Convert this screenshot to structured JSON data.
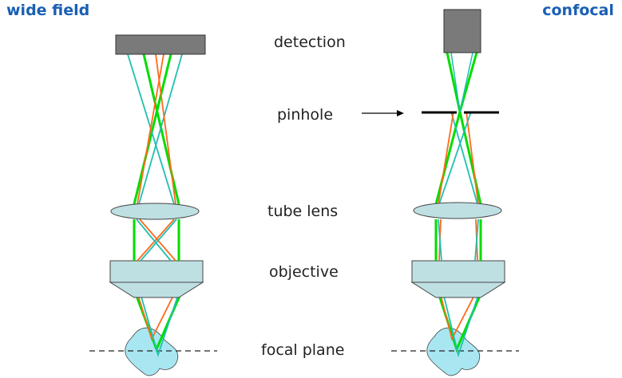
{
  "titles": {
    "wide_field": "wide field",
    "confocal": "confocal"
  },
  "labels": {
    "detection": "detection",
    "pinhole": "pinhole",
    "tube_lens": "tube lens",
    "objective": "objective",
    "focal_plane": "focal plane"
  },
  "colors": {
    "title": "#1a5fb4",
    "detector": "#7a7a7a",
    "lens_fill": "#bfe0e3",
    "sample_fill": "#a8e6f2",
    "ray_green": "#00dd00",
    "ray_cyan": "#1fc0b0",
    "ray_orange": "#ff6a1a"
  }
}
